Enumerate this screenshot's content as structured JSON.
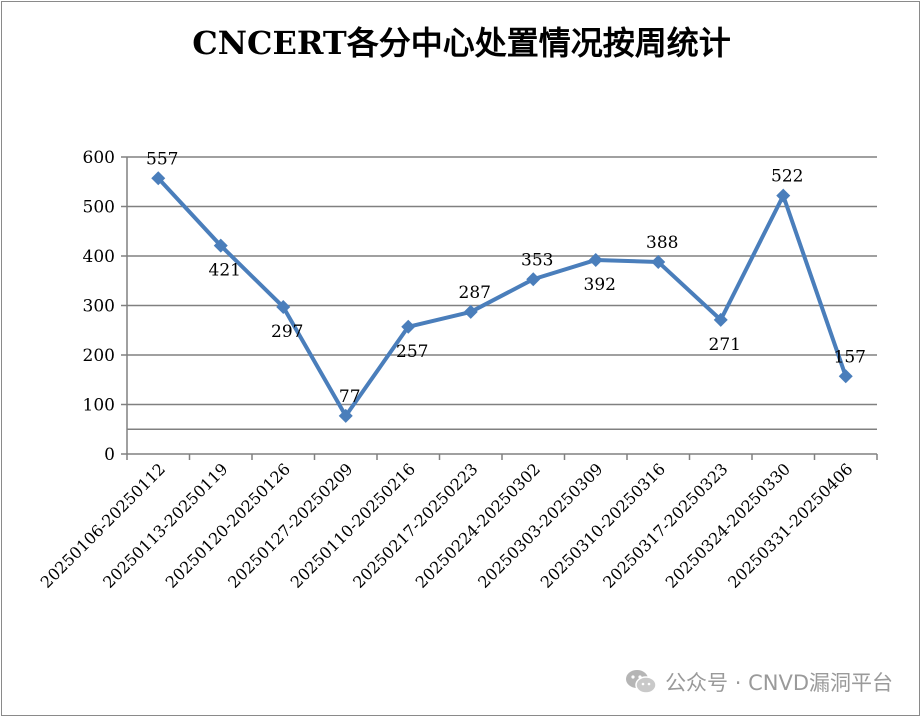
{
  "chart_data": {
    "type": "line",
    "title": "CNCERT各分中心处置情况按周统计",
    "xlabel": "",
    "ylabel": "",
    "categories": [
      "20250106-20250112",
      "20250113-20250119",
      "20250120-20250126",
      "20250127-20250209",
      "20250110-20250216",
      "20250217-20250223",
      "20250224-20250302",
      "20250303-20250309",
      "20250310-20250316",
      "20250317-20250323",
      "20250324-20250330",
      "20250331-20250406"
    ],
    "series": [
      {
        "values": [
          557,
          421,
          297,
          77,
          257,
          287,
          353,
          392,
          388,
          271,
          522,
          157
        ],
        "color": "#4a7ebb"
      }
    ],
    "data_labels": [
      "557",
      "421",
      "297",
      "77",
      "257",
      "287",
      "353",
      "392",
      "388",
      "271",
      "522",
      "157"
    ],
    "label_positions": [
      "above",
      "below",
      "below",
      "above",
      "below",
      "above",
      "above",
      "below",
      "above",
      "below",
      "above",
      "above"
    ],
    "yticks": [
      0,
      100,
      200,
      300,
      400,
      500,
      600
    ],
    "ytick_labels": [
      "0",
      "100",
      "200",
      "300",
      "400",
      "500",
      "600"
    ],
    "ylim": [
      0,
      600
    ],
    "grid": true,
    "legend": "none",
    "colors": {
      "line": "#4a7ebb",
      "grid": "#808080",
      "text": "#000000"
    }
  },
  "watermark": {
    "icon": "wechat-icon",
    "text": "公众号 · CNVD漏洞平台"
  }
}
